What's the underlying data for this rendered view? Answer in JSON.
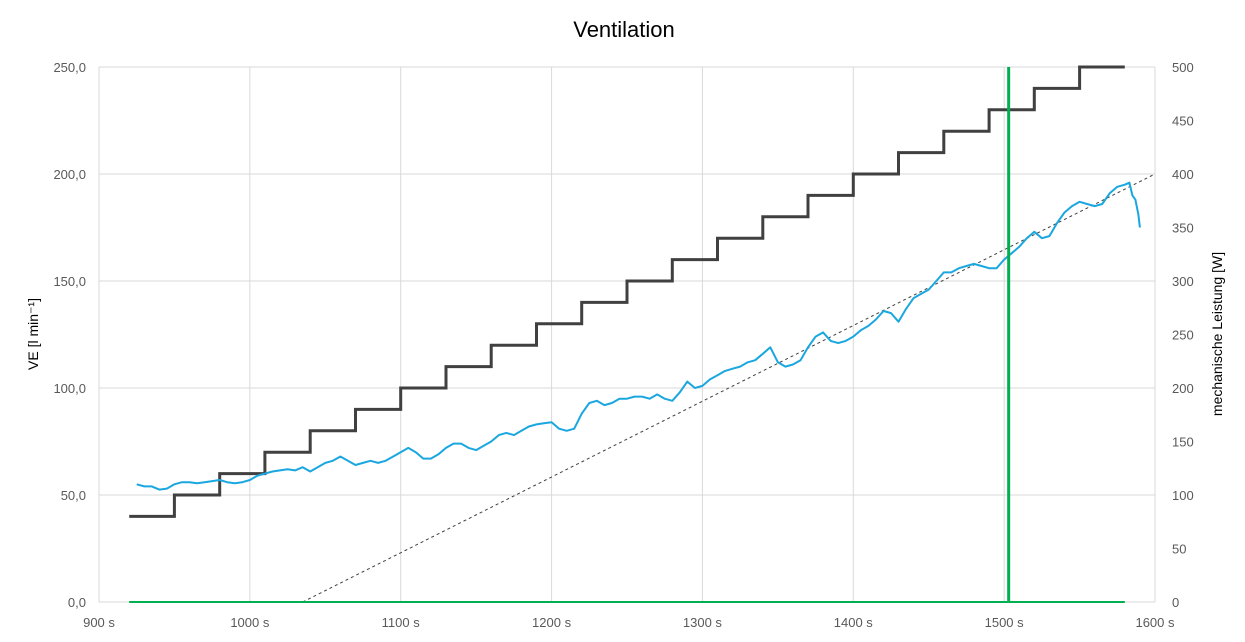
{
  "chart_data": {
    "type": "line",
    "title": "Ventilation",
    "ylabel_left": "VE [l min⁻¹]",
    "ylabel_right": "mechanische Leistung [W]",
    "xlabel": "",
    "xlim": [
      900,
      1600
    ],
    "ylim_left": [
      0,
      250
    ],
    "ylim_right": [
      0,
      500
    ],
    "x_ticks": [
      900,
      1000,
      1100,
      1200,
      1300,
      1400,
      1500,
      1600
    ],
    "x_tick_labels": [
      "900 s",
      "1000 s",
      "1100 s",
      "1200 s",
      "1300 s",
      "1400 s",
      "1500 s",
      "1600 s"
    ],
    "y_left_ticks": [
      0,
      50,
      100,
      150,
      200,
      250
    ],
    "y_left_tick_labels": [
      "0,0",
      "50,0",
      "100,0",
      "150,0",
      "200,0",
      "250,0"
    ],
    "y_right_ticks": [
      0,
      50,
      100,
      150,
      200,
      250,
      300,
      350,
      400,
      450,
      500
    ],
    "y_right_tick_labels": [
      "0",
      "50",
      "100",
      "150",
      "200",
      "250",
      "300",
      "350",
      "400",
      "450",
      "500"
    ],
    "grid": true,
    "legend": "none",
    "colors": {
      "ventilation": "#1aa7e0",
      "power": "#404040",
      "marker": "#00b050",
      "trend": "#404040",
      "baseline": "#00b050",
      "grid": "#d9d9d9",
      "tick_text": "#595959"
    },
    "series": [
      {
        "axis": "left",
        "style": "solid",
        "values": [
          [
            925,
            55
          ],
          [
            930,
            54
          ],
          [
            935,
            54
          ],
          [
            940,
            52.5
          ],
          [
            945,
            53
          ],
          [
            950,
            55
          ],
          [
            955,
            56
          ],
          [
            960,
            56
          ],
          [
            965,
            55.5
          ],
          [
            970,
            56
          ],
          [
            975,
            56.5
          ],
          [
            980,
            57
          ],
          [
            985,
            56
          ],
          [
            990,
            55.5
          ],
          [
            995,
            56
          ],
          [
            1000,
            57
          ],
          [
            1005,
            59
          ],
          [
            1010,
            60
          ],
          [
            1015,
            61
          ],
          [
            1020,
            61.5
          ],
          [
            1025,
            62
          ],
          [
            1030,
            61.5
          ],
          [
            1035,
            63
          ],
          [
            1040,
            61
          ],
          [
            1045,
            63
          ],
          [
            1050,
            65
          ],
          [
            1055,
            66
          ],
          [
            1060,
            68
          ],
          [
            1065,
            66
          ],
          [
            1070,
            64
          ],
          [
            1075,
            65
          ],
          [
            1080,
            66
          ],
          [
            1085,
            65
          ],
          [
            1090,
            66
          ],
          [
            1095,
            68
          ],
          [
            1100,
            70
          ],
          [
            1105,
            72
          ],
          [
            1110,
            70
          ],
          [
            1115,
            67
          ],
          [
            1120,
            67
          ],
          [
            1125,
            69
          ],
          [
            1130,
            72
          ],
          [
            1135,
            74
          ],
          [
            1140,
            74
          ],
          [
            1145,
            72
          ],
          [
            1150,
            71
          ],
          [
            1155,
            73
          ],
          [
            1160,
            75
          ],
          [
            1165,
            78
          ],
          [
            1170,
            79
          ],
          [
            1175,
            78
          ],
          [
            1180,
            80
          ],
          [
            1185,
            82
          ],
          [
            1190,
            83
          ],
          [
            1195,
            83.5
          ],
          [
            1200,
            84
          ],
          [
            1205,
            81
          ],
          [
            1210,
            80
          ],
          [
            1215,
            81
          ],
          [
            1220,
            88
          ],
          [
            1225,
            93
          ],
          [
            1230,
            94
          ],
          [
            1235,
            92
          ],
          [
            1240,
            93
          ],
          [
            1245,
            95
          ],
          [
            1250,
            95
          ],
          [
            1255,
            96
          ],
          [
            1260,
            96
          ],
          [
            1265,
            95
          ],
          [
            1270,
            97
          ],
          [
            1275,
            95
          ],
          [
            1280,
            94
          ],
          [
            1285,
            98
          ],
          [
            1290,
            103
          ],
          [
            1295,
            100
          ],
          [
            1300,
            101
          ],
          [
            1305,
            104
          ],
          [
            1310,
            106
          ],
          [
            1315,
            108
          ],
          [
            1320,
            109
          ],
          [
            1325,
            110
          ],
          [
            1330,
            112
          ],
          [
            1335,
            113
          ],
          [
            1340,
            116
          ],
          [
            1345,
            119
          ],
          [
            1350,
            112
          ],
          [
            1355,
            110
          ],
          [
            1360,
            111
          ],
          [
            1365,
            113
          ],
          [
            1370,
            119
          ],
          [
            1375,
            124
          ],
          [
            1380,
            126
          ],
          [
            1385,
            122
          ],
          [
            1390,
            121
          ],
          [
            1395,
            122
          ],
          [
            1400,
            124
          ],
          [
            1405,
            127
          ],
          [
            1410,
            129
          ],
          [
            1415,
            132
          ],
          [
            1420,
            136
          ],
          [
            1425,
            135
          ],
          [
            1430,
            131
          ],
          [
            1435,
            137
          ],
          [
            1440,
            142
          ],
          [
            1445,
            144
          ],
          [
            1450,
            146
          ],
          [
            1455,
            150
          ],
          [
            1460,
            154
          ],
          [
            1465,
            154
          ],
          [
            1470,
            156
          ],
          [
            1475,
            157
          ],
          [
            1480,
            158
          ],
          [
            1485,
            157
          ],
          [
            1490,
            156
          ],
          [
            1495,
            156
          ],
          [
            1500,
            160
          ],
          [
            1505,
            163
          ],
          [
            1510,
            166
          ],
          [
            1515,
            170
          ],
          [
            1520,
            173
          ],
          [
            1525,
            170
          ],
          [
            1530,
            171
          ],
          [
            1535,
            177
          ],
          [
            1540,
            182
          ],
          [
            1545,
            185
          ],
          [
            1550,
            187
          ],
          [
            1555,
            186
          ],
          [
            1560,
            185
          ],
          [
            1565,
            186
          ],
          [
            1570,
            191
          ],
          [
            1575,
            194
          ],
          [
            1580,
            195
          ],
          [
            1583,
            196
          ],
          [
            1585,
            190
          ],
          [
            1587,
            188
          ],
          [
            1589,
            181
          ],
          [
            1590,
            175
          ]
        ]
      },
      {
        "axis": "right",
        "style": "step",
        "values": [
          [
            920,
            80
          ],
          [
            950,
            80
          ],
          [
            950,
            100
          ],
          [
            980,
            100
          ],
          [
            980,
            120
          ],
          [
            1010,
            120
          ],
          [
            1010,
            140
          ],
          [
            1040,
            140
          ],
          [
            1040,
            160
          ],
          [
            1070,
            160
          ],
          [
            1070,
            180
          ],
          [
            1100,
            180
          ],
          [
            1100,
            200
          ],
          [
            1130,
            200
          ],
          [
            1130,
            220
          ],
          [
            1160,
            220
          ],
          [
            1160,
            240
          ],
          [
            1190,
            240
          ],
          [
            1190,
            260
          ],
          [
            1220,
            260
          ],
          [
            1220,
            280
          ],
          [
            1250,
            280
          ],
          [
            1250,
            300
          ],
          [
            1280,
            300
          ],
          [
            1280,
            320
          ],
          [
            1310,
            320
          ],
          [
            1310,
            340
          ],
          [
            1340,
            340
          ],
          [
            1340,
            360
          ],
          [
            1370,
            360
          ],
          [
            1370,
            380
          ],
          [
            1400,
            380
          ],
          [
            1400,
            400
          ],
          [
            1430,
            400
          ],
          [
            1430,
            420
          ],
          [
            1460,
            420
          ],
          [
            1460,
            440
          ],
          [
            1490,
            440
          ],
          [
            1490,
            460
          ],
          [
            1520,
            460
          ],
          [
            1520,
            480
          ],
          [
            1550,
            480
          ],
          [
            1550,
            500
          ],
          [
            1580,
            500
          ]
        ]
      },
      {
        "axis": "right",
        "style": "dashed",
        "values": [
          [
            1035,
            0
          ],
          [
            1600,
            400
          ]
        ]
      }
    ],
    "vertical_marker_x": 1503,
    "baseline": {
      "axis": "left",
      "y": 0,
      "x_start": 920,
      "x_end": 1580
    }
  }
}
